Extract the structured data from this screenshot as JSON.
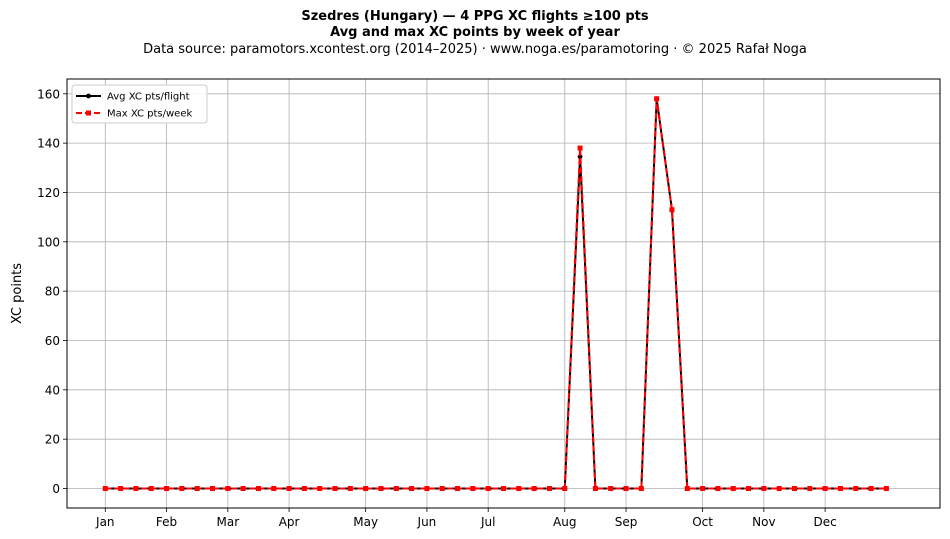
{
  "title_line1": "Szedres (Hungary)  —  4 PPG XC flights ≥100 pts",
  "title_line2": "Avg and max XC points by week of year",
  "title_line3": "Data source: paramotors.xcontest.org (2014–2025)  ·  www.noga.es/paramotoring  ·  © 2025 Rafał Noga",
  "chart_data": {
    "type": "line",
    "ylabel": "XC points",
    "xlabel": "",
    "x_unit": "week of year",
    "xlim": [
      -1.5,
      55.5
    ],
    "ylim": [
      -7.9,
      166
    ],
    "grid": true,
    "legend_position": "top-left",
    "y_ticks": [
      0,
      20,
      40,
      60,
      80,
      100,
      120,
      140,
      160
    ],
    "x_ticks": [
      {
        "label": "Jan",
        "week": 1
      },
      {
        "label": "Feb",
        "week": 5
      },
      {
        "label": "Mar",
        "week": 9
      },
      {
        "label": "Apr",
        "week": 13
      },
      {
        "label": "May",
        "week": 18
      },
      {
        "label": "Jun",
        "week": 22
      },
      {
        "label": "Jul",
        "week": 26
      },
      {
        "label": "Aug",
        "week": 31
      },
      {
        "label": "Sep",
        "week": 35
      },
      {
        "label": "Oct",
        "week": 40
      },
      {
        "label": "Nov",
        "week": 44
      },
      {
        "label": "Dec",
        "week": 48
      }
    ],
    "x": [
      1,
      2,
      3,
      4,
      5,
      6,
      7,
      8,
      9,
      10,
      11,
      12,
      13,
      14,
      15,
      16,
      17,
      18,
      19,
      20,
      21,
      22,
      23,
      24,
      25,
      26,
      27,
      28,
      29,
      30,
      31,
      32,
      33,
      34,
      35,
      36,
      37,
      38,
      39,
      40,
      41,
      42,
      43,
      44,
      45,
      46,
      47,
      48,
      49,
      50,
      51,
      52
    ],
    "series": [
      {
        "name": "Avg XC pts/flight",
        "color": "#000000",
        "style": "solid",
        "marker": "circle",
        "values": [
          0,
          0,
          0,
          0,
          0,
          0,
          0,
          0,
          0,
          0,
          0,
          0,
          0,
          0,
          0,
          0,
          0,
          0,
          0,
          0,
          0,
          0,
          0,
          0,
          0,
          0,
          0,
          0,
          0,
          0,
          0,
          134.5,
          0,
          0,
          0,
          0,
          158,
          113,
          0,
          0,
          0,
          0,
          0,
          0,
          0,
          0,
          0,
          0,
          0,
          0,
          0,
          0
        ]
      },
      {
        "name": "Max XC pts/week",
        "color": "#ff0000",
        "style": "dashed",
        "marker": "square",
        "values": [
          0,
          0,
          0,
          0,
          0,
          0,
          0,
          0,
          0,
          0,
          0,
          0,
          0,
          0,
          0,
          0,
          0,
          0,
          0,
          0,
          0,
          0,
          0,
          0,
          0,
          0,
          0,
          0,
          0,
          0,
          0,
          138,
          0,
          0,
          0,
          0,
          158,
          113,
          0,
          0,
          0,
          0,
          0,
          0,
          0,
          0,
          0,
          0,
          0,
          0,
          0,
          0
        ]
      }
    ]
  }
}
